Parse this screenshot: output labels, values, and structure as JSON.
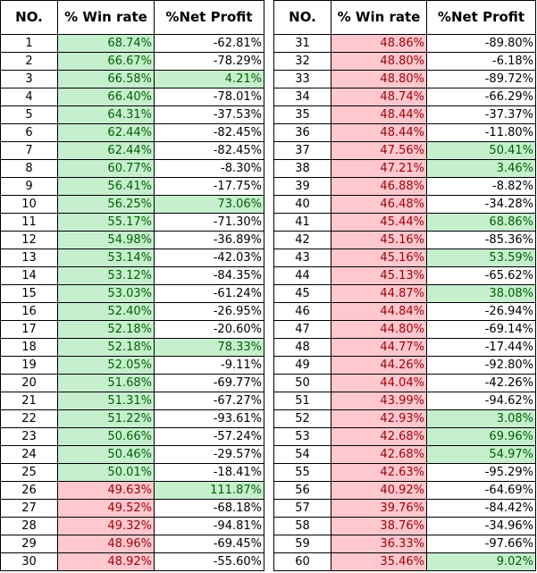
{
  "headers": {
    "no": "NO.",
    "win_rate": "% Win rate",
    "net_profit": "%Net Profit"
  },
  "colors": {
    "green_fill": "#c6efce",
    "green_text": "#006100",
    "red_fill": "#ffc7ce",
    "red_text": "#9c0006"
  },
  "rows": [
    {
      "no": "1",
      "win_rate": "68.74%",
      "net_profit": "-62.81%",
      "wr_color": "green",
      "np_color": "none"
    },
    {
      "no": "2",
      "win_rate": "66.67%",
      "net_profit": "-78.29%",
      "wr_color": "green",
      "np_color": "none"
    },
    {
      "no": "3",
      "win_rate": "66.58%",
      "net_profit": "4.21%",
      "wr_color": "green",
      "np_color": "green"
    },
    {
      "no": "4",
      "win_rate": "66.40%",
      "net_profit": "-78.01%",
      "wr_color": "green",
      "np_color": "none"
    },
    {
      "no": "5",
      "win_rate": "64.31%",
      "net_profit": "-37.53%",
      "wr_color": "green",
      "np_color": "none"
    },
    {
      "no": "6",
      "win_rate": "62.44%",
      "net_profit": "-82.45%",
      "wr_color": "green",
      "np_color": "none"
    },
    {
      "no": "7",
      "win_rate": "62.44%",
      "net_profit": "-82.45%",
      "wr_color": "green",
      "np_color": "none"
    },
    {
      "no": "8",
      "win_rate": "60.77%",
      "net_profit": "-8.30%",
      "wr_color": "green",
      "np_color": "none"
    },
    {
      "no": "9",
      "win_rate": "56.41%",
      "net_profit": "-17.75%",
      "wr_color": "green",
      "np_color": "none"
    },
    {
      "no": "10",
      "win_rate": "56.25%",
      "net_profit": "73.06%",
      "wr_color": "green",
      "np_color": "green"
    },
    {
      "no": "11",
      "win_rate": "55.17%",
      "net_profit": "-71.30%",
      "wr_color": "green",
      "np_color": "none"
    },
    {
      "no": "12",
      "win_rate": "54.98%",
      "net_profit": "-36.89%",
      "wr_color": "green",
      "np_color": "none"
    },
    {
      "no": "13",
      "win_rate": "53.14%",
      "net_profit": "-42.03%",
      "wr_color": "green",
      "np_color": "none"
    },
    {
      "no": "14",
      "win_rate": "53.12%",
      "net_profit": "-84.35%",
      "wr_color": "green",
      "np_color": "none"
    },
    {
      "no": "15",
      "win_rate": "53.03%",
      "net_profit": "-61.24%",
      "wr_color": "green",
      "np_color": "none"
    },
    {
      "no": "16",
      "win_rate": "52.40%",
      "net_profit": "-26.95%",
      "wr_color": "green",
      "np_color": "none"
    },
    {
      "no": "17",
      "win_rate": "52.18%",
      "net_profit": "-20.60%",
      "wr_color": "green",
      "np_color": "none"
    },
    {
      "no": "18",
      "win_rate": "52.18%",
      "net_profit": "78.33%",
      "wr_color": "green",
      "np_color": "green"
    },
    {
      "no": "19",
      "win_rate": "52.05%",
      "net_profit": "-9.11%",
      "wr_color": "green",
      "np_color": "none"
    },
    {
      "no": "20",
      "win_rate": "51.68%",
      "net_profit": "-69.77%",
      "wr_color": "green",
      "np_color": "none"
    },
    {
      "no": "21",
      "win_rate": "51.31%",
      "net_profit": "-67.27%",
      "wr_color": "green",
      "np_color": "none"
    },
    {
      "no": "22",
      "win_rate": "51.22%",
      "net_profit": "-93.61%",
      "wr_color": "green",
      "np_color": "none"
    },
    {
      "no": "23",
      "win_rate": "50.66%",
      "net_profit": "-57.24%",
      "wr_color": "green",
      "np_color": "none"
    },
    {
      "no": "24",
      "win_rate": "50.46%",
      "net_profit": "-29.57%",
      "wr_color": "green",
      "np_color": "none"
    },
    {
      "no": "25",
      "win_rate": "50.01%",
      "net_profit": "-18.41%",
      "wr_color": "green",
      "np_color": "none"
    },
    {
      "no": "26",
      "win_rate": "49.63%",
      "net_profit": "111.87%",
      "wr_color": "red",
      "np_color": "green"
    },
    {
      "no": "27",
      "win_rate": "49.52%",
      "net_profit": "-68.18%",
      "wr_color": "red",
      "np_color": "none"
    },
    {
      "no": "28",
      "win_rate": "49.32%",
      "net_profit": "-94.81%",
      "wr_color": "red",
      "np_color": "none"
    },
    {
      "no": "29",
      "win_rate": "48.96%",
      "net_profit": "-69.45%",
      "wr_color": "red",
      "np_color": "none"
    },
    {
      "no": "30",
      "win_rate": "48.92%",
      "net_profit": "-55.60%",
      "wr_color": "red",
      "np_color": "none"
    },
    {
      "no": "31",
      "win_rate": "48.86%",
      "net_profit": "-89.80%",
      "wr_color": "red",
      "np_color": "none"
    },
    {
      "no": "32",
      "win_rate": "48.80%",
      "net_profit": "-6.18%",
      "wr_color": "red",
      "np_color": "none"
    },
    {
      "no": "33",
      "win_rate": "48.80%",
      "net_profit": "-89.72%",
      "wr_color": "red",
      "np_color": "none"
    },
    {
      "no": "34",
      "win_rate": "48.74%",
      "net_profit": "-66.29%",
      "wr_color": "red",
      "np_color": "none"
    },
    {
      "no": "35",
      "win_rate": "48.44%",
      "net_profit": "-37.37%",
      "wr_color": "red",
      "np_color": "none"
    },
    {
      "no": "36",
      "win_rate": "48.44%",
      "net_profit": "-11.80%",
      "wr_color": "red",
      "np_color": "none"
    },
    {
      "no": "37",
      "win_rate": "47.56%",
      "net_profit": "50.41%",
      "wr_color": "red",
      "np_color": "green"
    },
    {
      "no": "38",
      "win_rate": "47.21%",
      "net_profit": "3.46%",
      "wr_color": "red",
      "np_color": "green"
    },
    {
      "no": "39",
      "win_rate": "46.88%",
      "net_profit": "-8.82%",
      "wr_color": "red",
      "np_color": "none"
    },
    {
      "no": "40",
      "win_rate": "46.48%",
      "net_profit": "-34.28%",
      "wr_color": "red",
      "np_color": "none"
    },
    {
      "no": "41",
      "win_rate": "45.44%",
      "net_profit": "68.86%",
      "wr_color": "red",
      "np_color": "green"
    },
    {
      "no": "42",
      "win_rate": "45.16%",
      "net_profit": "-85.36%",
      "wr_color": "red",
      "np_color": "none"
    },
    {
      "no": "43",
      "win_rate": "45.16%",
      "net_profit": "53.59%",
      "wr_color": "red",
      "np_color": "green"
    },
    {
      "no": "44",
      "win_rate": "45.13%",
      "net_profit": "-65.62%",
      "wr_color": "red",
      "np_color": "none"
    },
    {
      "no": "45",
      "win_rate": "44.87%",
      "net_profit": "38.08%",
      "wr_color": "red",
      "np_color": "green"
    },
    {
      "no": "46",
      "win_rate": "44.84%",
      "net_profit": "-26.94%",
      "wr_color": "red",
      "np_color": "none"
    },
    {
      "no": "47",
      "win_rate": "44.80%",
      "net_profit": "-69.14%",
      "wr_color": "red",
      "np_color": "none"
    },
    {
      "no": "48",
      "win_rate": "44.77%",
      "net_profit": "-17.44%",
      "wr_color": "red",
      "np_color": "none"
    },
    {
      "no": "49",
      "win_rate": "44.26%",
      "net_profit": "-92.80%",
      "wr_color": "red",
      "np_color": "none"
    },
    {
      "no": "50",
      "win_rate": "44.04%",
      "net_profit": "-42.26%",
      "wr_color": "red",
      "np_color": "none"
    },
    {
      "no": "51",
      "win_rate": "43.99%",
      "net_profit": "-94.62%",
      "wr_color": "red",
      "np_color": "none"
    },
    {
      "no": "52",
      "win_rate": "42.93%",
      "net_profit": "3.08%",
      "wr_color": "red",
      "np_color": "green"
    },
    {
      "no": "53",
      "win_rate": "42.68%",
      "net_profit": "69.96%",
      "wr_color": "red",
      "np_color": "green"
    },
    {
      "no": "54",
      "win_rate": "42.68%",
      "net_profit": "54.97%",
      "wr_color": "red",
      "np_color": "green"
    },
    {
      "no": "55",
      "win_rate": "42.63%",
      "net_profit": "-95.29%",
      "wr_color": "red",
      "np_color": "none"
    },
    {
      "no": "56",
      "win_rate": "40.92%",
      "net_profit": "-64.69%",
      "wr_color": "red",
      "np_color": "none"
    },
    {
      "no": "57",
      "win_rate": "39.76%",
      "net_profit": "-84.42%",
      "wr_color": "red",
      "np_color": "none"
    },
    {
      "no": "58",
      "win_rate": "38.76%",
      "net_profit": "-34.96%",
      "wr_color": "red",
      "np_color": "none"
    },
    {
      "no": "59",
      "win_rate": "36.33%",
      "net_profit": "-97.66%",
      "wr_color": "red",
      "np_color": "none"
    },
    {
      "no": "60",
      "win_rate": "35.46%",
      "net_profit": "9.02%",
      "wr_color": "red",
      "np_color": "green"
    }
  ]
}
